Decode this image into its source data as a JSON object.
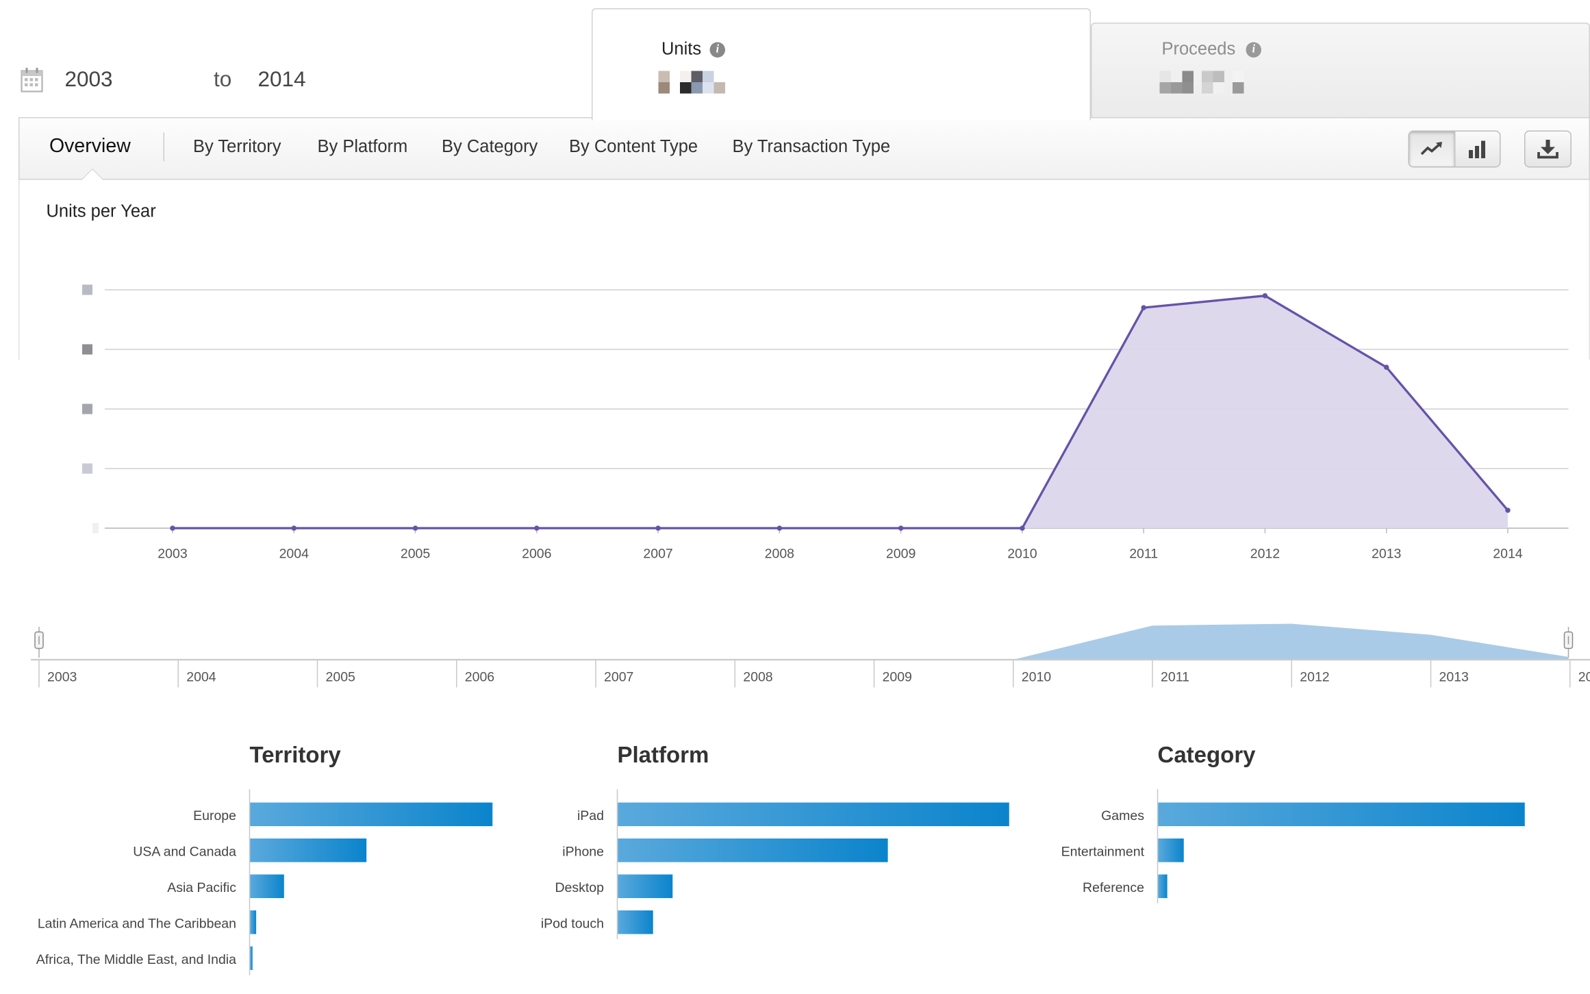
{
  "date_range": {
    "from": "2003",
    "separator": "to",
    "to": "2014"
  },
  "metric_tabs": [
    {
      "label": "Units",
      "active": true
    },
    {
      "label": "Proceeds",
      "active": false
    }
  ],
  "nav": {
    "items": [
      "Overview",
      "By Territory",
      "By Platform",
      "By Category",
      "By Content Type",
      "By Transaction Type"
    ],
    "active": "Overview"
  },
  "toolbar": {
    "line_chart_icon": "trend-line-icon",
    "bar_chart_icon": "bar-chart-icon",
    "download_icon": "download-icon"
  },
  "colors": {
    "series_line": "#6553a8",
    "series_fill": "#dcd6ec",
    "timeline_fill": "#a9cbe8",
    "bar_start": "#5aa9dc",
    "bar_end": "#0b84cc"
  },
  "chart_data": [
    {
      "type": "area",
      "title": "Units per Year",
      "x": [
        "2003",
        "2004",
        "2005",
        "2006",
        "2007",
        "2008",
        "2009",
        "2010",
        "2011",
        "2012",
        "2013",
        "2014"
      ],
      "values": [
        0,
        0,
        0,
        0,
        0,
        0,
        0,
        0,
        74,
        78,
        54,
        6
      ],
      "ylim": [
        0,
        100
      ],
      "y_tick_labels_obscured": true,
      "grid": true
    },
    {
      "type": "area",
      "title": "",
      "x": [
        "2003",
        "2004",
        "2005",
        "2006",
        "2007",
        "2008",
        "2009",
        "2010",
        "2011",
        "2012",
        "2013",
        "2014"
      ],
      "tick_labels": [
        "2003",
        "2004",
        "2005",
        "2006",
        "2007",
        "2008",
        "2009",
        "2010",
        "2011",
        "2012",
        "2013",
        "20"
      ],
      "values": [
        0,
        0,
        0,
        0,
        0,
        0,
        0,
        0,
        74,
        78,
        54,
        6
      ],
      "role": "range-selector"
    },
    {
      "type": "bar",
      "title": "Territory",
      "categories": [
        "Europe",
        "USA and Canada",
        "Asia Pacific",
        "Latin America and The Caribbean",
        "Africa, The Middle East, and India"
      ],
      "values": [
        100,
        48,
        14,
        2.5,
        1
      ]
    },
    {
      "type": "bar",
      "title": "Platform",
      "categories": [
        "iPad",
        "iPhone",
        "Desktop",
        "iPod touch"
      ],
      "values": [
        100,
        69,
        14,
        9
      ]
    },
    {
      "type": "bar",
      "title": "Category",
      "categories": [
        "Games",
        "Entertainment",
        "Reference"
      ],
      "values": [
        100,
        7,
        2.5
      ]
    }
  ]
}
